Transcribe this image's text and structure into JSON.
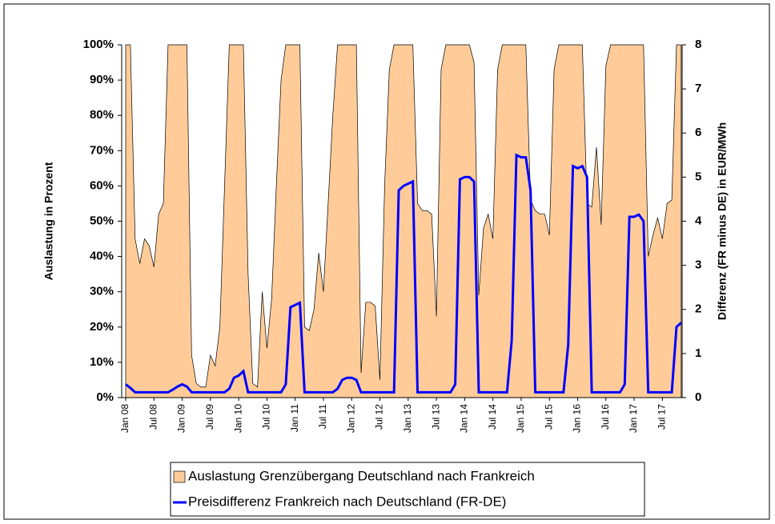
{
  "chart_data": {
    "type": "area-line",
    "y_label": "Auslastung in Prozent",
    "y2_label": "Differenz (FR minus DE) in EUR/MWh",
    "categories": [
      "Jan 08",
      null,
      null,
      null,
      null,
      null,
      "Jul 08",
      null,
      null,
      null,
      null,
      null,
      "Jan 09",
      null,
      null,
      null,
      null,
      null,
      "Jul 09",
      null,
      null,
      null,
      null,
      null,
      "Jan 10",
      null,
      null,
      null,
      null,
      null,
      "Jul 10",
      null,
      null,
      null,
      null,
      null,
      "Jan 11",
      null,
      null,
      null,
      null,
      null,
      "Jul 11",
      null,
      null,
      null,
      null,
      null,
      "Jan 12",
      null,
      null,
      null,
      null,
      null,
      "Jul 12",
      null,
      null,
      null,
      null,
      null,
      "Jan 13",
      null,
      null,
      null,
      null,
      null,
      "Jul 13",
      null,
      null,
      null,
      null,
      null,
      "Jan 14",
      null,
      null,
      null,
      null,
      null,
      "Jul 14",
      null,
      null,
      null,
      null,
      null,
      "Jan 15",
      null,
      null,
      null,
      null,
      null,
      "Jul 15",
      null,
      null,
      null,
      null,
      null,
      "Jan 16",
      null,
      null,
      null,
      null,
      null,
      "Jul 16",
      null,
      null,
      null,
      null,
      null,
      "Jan 17",
      null,
      null,
      null,
      null,
      null,
      "Jul 17",
      null,
      null,
      null,
      null
    ],
    "series": [
      {
        "name": "Auslastung Grenzübergang Deutschland nach Frankreich",
        "kind": "area",
        "color": "#FFCC99",
        "values": [
          100,
          100,
          45,
          38,
          45,
          43,
          37,
          52,
          55,
          100,
          100,
          100,
          100,
          100,
          12,
          4,
          3,
          3,
          12,
          9,
          20,
          60,
          100,
          100,
          100,
          100,
          35,
          4,
          3,
          30,
          14,
          28,
          60,
          90,
          100,
          100,
          100,
          100,
          20,
          19,
          25,
          41,
          30,
          55,
          80,
          100,
          100,
          100,
          100,
          100,
          7,
          27,
          27,
          26,
          5,
          60,
          93,
          100,
          100,
          100,
          100,
          100,
          55,
          53,
          53,
          52,
          23,
          93,
          100,
          100,
          100,
          100,
          100,
          100,
          95,
          29,
          48,
          52,
          45,
          93,
          100,
          100,
          100,
          100,
          100,
          100,
          56,
          53,
          52,
          52,
          46,
          93,
          100,
          100,
          100,
          100,
          100,
          100,
          55,
          54,
          71,
          49,
          94,
          100,
          100,
          100,
          100,
          100,
          100,
          100,
          100,
          40,
          46,
          51,
          45,
          55,
          56,
          100,
          100
        ]
      },
      {
        "name": "Preisdifferenz Frankreich nach Deutschland (FR-DE)",
        "kind": "line",
        "axis": "y2",
        "color": "#0000FF",
        "values": [
          0.3,
          0.22,
          0.12,
          0.12,
          0.12,
          0.12,
          0.12,
          0.12,
          0.12,
          0.12,
          0.18,
          0.25,
          0.3,
          0.25,
          0.12,
          0.12,
          0.12,
          0.12,
          0.12,
          0.12,
          0.12,
          0.12,
          0.2,
          0.45,
          0.5,
          0.6,
          0.12,
          0.12,
          0.12,
          0.12,
          0.12,
          0.12,
          0.12,
          0.12,
          0.3,
          2.05,
          2.1,
          2.15,
          0.12,
          0.12,
          0.12,
          0.12,
          0.12,
          0.12,
          0.12,
          0.2,
          0.4,
          0.45,
          0.45,
          0.4,
          0.12,
          0.12,
          0.12,
          0.12,
          0.12,
          0.12,
          0.12,
          0.12,
          4.7,
          4.8,
          4.85,
          4.9,
          0.12,
          0.12,
          0.12,
          0.12,
          0.12,
          0.12,
          0.12,
          0.12,
          0.3,
          4.95,
          5.0,
          5.0,
          4.9,
          0.12,
          0.12,
          0.12,
          0.12,
          0.12,
          0.12,
          0.12,
          1.3,
          5.5,
          5.45,
          5.45,
          4.7,
          0.12,
          0.12,
          0.12,
          0.12,
          0.12,
          0.12,
          0.12,
          1.2,
          5.25,
          5.2,
          5.25,
          5.0,
          0.12,
          0.12,
          0.12,
          0.12,
          0.12,
          0.12,
          0.12,
          0.3,
          4.1,
          4.1,
          4.15,
          4.0,
          0.12,
          0.12,
          0.12,
          0.12,
          0.12,
          0.12,
          1.6,
          1.7
        ]
      }
    ],
    "ylim": [
      0,
      100
    ],
    "yticks": [
      {
        "value": 0,
        "label": "0%"
      },
      {
        "value": 10,
        "label": "10%"
      },
      {
        "value": 20,
        "label": "20%"
      },
      {
        "value": 30,
        "label": "30%"
      },
      {
        "value": 40,
        "label": "40%"
      },
      {
        "value": 50,
        "label": "50%"
      },
      {
        "value": 60,
        "label": "60%"
      },
      {
        "value": 70,
        "label": "70%"
      },
      {
        "value": 80,
        "label": "80%"
      },
      {
        "value": 90,
        "label": "90%"
      },
      {
        "value": 100,
        "label": "100%"
      }
    ],
    "y2lim": [
      0,
      8
    ],
    "y2ticks": [
      0,
      1,
      2,
      3,
      4,
      5,
      6,
      7,
      8
    ],
    "grid": false,
    "legend": "bottom"
  }
}
